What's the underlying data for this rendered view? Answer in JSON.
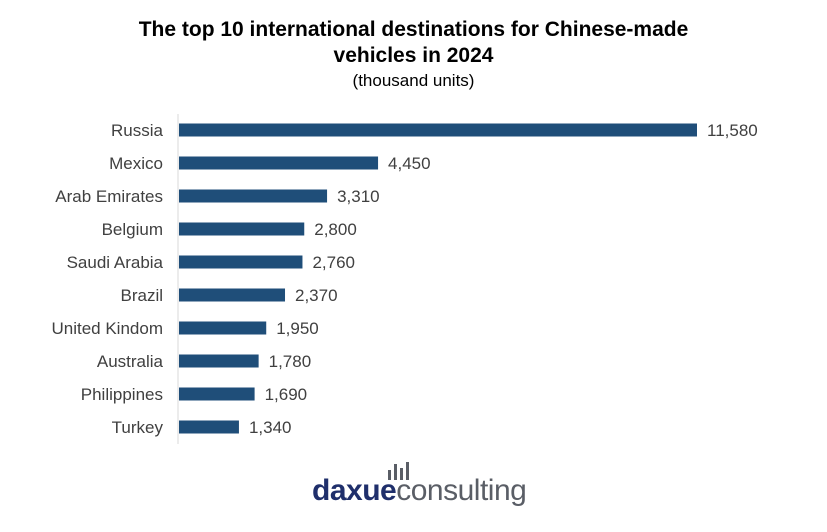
{
  "chart_data": {
    "type": "bar",
    "orientation": "horizontal",
    "title_line1": "The top 10 international destinations for Chinese-made",
    "title_line2": "vehicles in 2024",
    "subtitle": "(thousand units)",
    "categories": [
      "Russia",
      "Mexico",
      "Arab Emirates",
      "Belgium",
      "Saudi Arabia",
      "Brazil",
      "United Kindom",
      "Australia",
      "Philippines",
      "Turkey"
    ],
    "values": [
      11580,
      4450,
      3310,
      2800,
      2760,
      2370,
      1950,
      1780,
      1690,
      1340
    ],
    "value_labels": [
      "11,580",
      "4,450",
      "3,310",
      "2,800",
      "2,760",
      "2,370",
      "1,950",
      "1,780",
      "1,690",
      "1,340"
    ],
    "xlim": [
      0,
      11580
    ],
    "bar_color": "#1f4e79",
    "grid": false,
    "legend": "none"
  },
  "logo": {
    "part1": "daxue",
    "part2": "consulting"
  },
  "colors": {
    "logo_primary": "#1f2f6b",
    "logo_secondary": "#5a5e66"
  }
}
